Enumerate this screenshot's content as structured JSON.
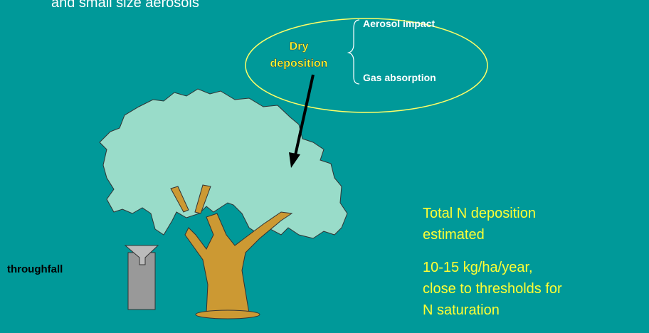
{
  "header": {
    "text": "and small size aerosols"
  },
  "bubble": {
    "label_line1": "Dry",
    "label_line2": "deposition"
  },
  "branches": [
    "Aerosol impact",
    "Gas absorption"
  ],
  "collector": {
    "label": "throughfall"
  },
  "note": {
    "lines": [
      "Total N deposition",
      "estimated",
      "10-15 kg/ha/year,",
      "close to thresholds for",
      "N saturation"
    ]
  }
}
